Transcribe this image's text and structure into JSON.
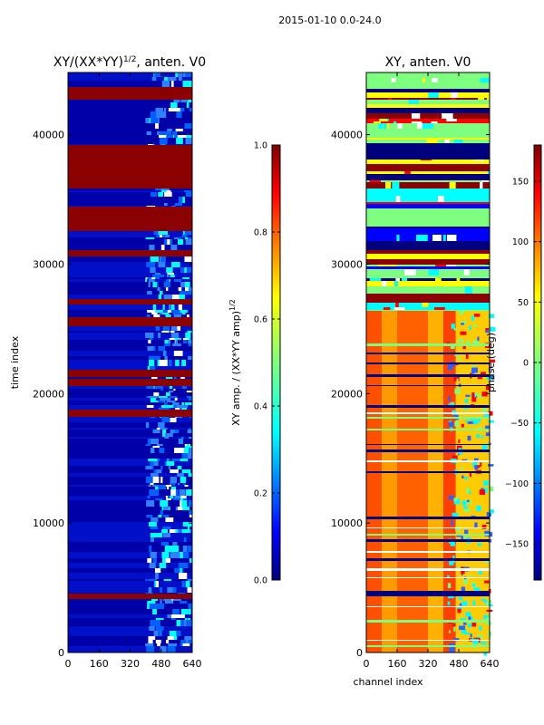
{
  "figure_title": "2015-01-10 0.0-24.0",
  "colors": {
    "jet": [
      "#00007f",
      "#0000ff",
      "#007fff",
      "#00ffff",
      "#7fff7f",
      "#ffff00",
      "#ff7f00",
      "#ff0000",
      "#7f0000"
    ]
  },
  "chart_data": [
    {
      "type": "heatmap",
      "title_main": "XY/(XX*YY)",
      "title_sup": "1/2",
      "title_suffix": ", anten. V0",
      "xlabel": "",
      "ylabel": "time index",
      "xlim": [
        0,
        640
      ],
      "ylim": [
        0,
        44800
      ],
      "xticks": [
        0,
        160,
        320,
        480,
        640
      ],
      "xtick_labels": [
        "0",
        "160",
        "320",
        "480",
        "640"
      ],
      "yticks": [
        0,
        10000,
        20000,
        30000,
        40000
      ],
      "ytick_labels": [
        "0",
        "10000",
        "20000",
        "30000",
        "40000"
      ],
      "colorbar": {
        "label_main": "XY amp. / (XX*YY amp)",
        "label_sup": "1/2",
        "range": [
          0.0,
          1.0
        ],
        "ticks": [
          0.0,
          0.2,
          0.4,
          0.6,
          0.8,
          1.0
        ],
        "tick_labels": [
          "0.0",
          "0.2",
          "0.4",
          "0.6",
          "0.8",
          "1.0"
        ]
      }
    },
    {
      "type": "heatmap",
      "title_main": "XY, anten. V0",
      "title_sup": "",
      "title_suffix": "",
      "xlabel": "channel index",
      "ylabel": "",
      "xlim": [
        0,
        640
      ],
      "ylim": [
        0,
        44800
      ],
      "xticks": [
        0,
        160,
        320,
        480,
        640
      ],
      "xtick_labels": [
        "0",
        "160",
        "320",
        "480",
        "640"
      ],
      "yticks": [
        0,
        10000,
        20000,
        30000,
        40000
      ],
      "ytick_labels": [
        "0",
        "10000",
        "20000",
        "30000",
        "40000"
      ],
      "colorbar": {
        "label_main": "phase (deg)",
        "label_sup": "",
        "range": [
          -180,
          180
        ],
        "ticks": [
          -150,
          -100,
          -50,
          0,
          50,
          100,
          150
        ],
        "tick_labels": [
          "−150",
          "−100",
          "−50",
          "0",
          "50",
          "100",
          "150"
        ]
      }
    }
  ]
}
